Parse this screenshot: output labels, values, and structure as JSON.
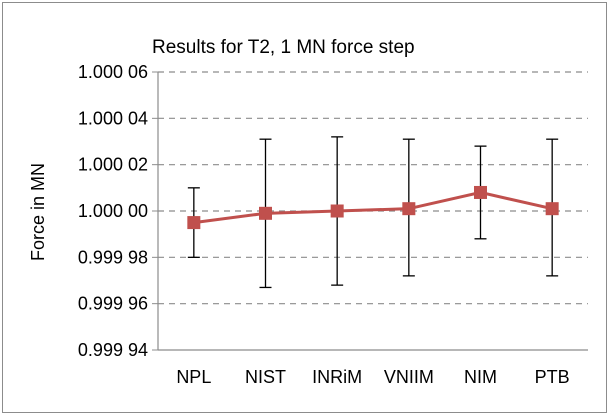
{
  "chart_data": {
    "type": "line",
    "title": "Results for T2, 1 MN force step",
    "xlabel": "",
    "ylabel": "Force in MN",
    "categories": [
      "NPL",
      "NIST",
      "INRiM",
      "VNIIM",
      "NIM",
      "PTB"
    ],
    "series": [
      {
        "values": [
          0.999995,
          0.999999,
          1.0,
          1.000001,
          1.000008,
          1.000001
        ],
        "error_low": [
          0.99998,
          0.999967,
          0.999968,
          0.999972,
          0.999988,
          0.999972
        ],
        "error_high": [
          1.00001,
          1.000031,
          1.000032,
          1.000031,
          1.000028,
          1.000031
        ],
        "color": "#c0504d"
      }
    ],
    "ylim": [
      0.99994,
      1.00006
    ],
    "yticks": [
      0.99994,
      0.99996,
      0.99998,
      1.0,
      1.00002,
      1.00004,
      1.00006
    ],
    "ytick_labels": [
      "0.999 94",
      "0.999 96",
      "0.999 98",
      "1.000 00",
      "1.000 02",
      "1.000 04",
      "1.000 06"
    ],
    "grid": true,
    "legend": "none"
  }
}
